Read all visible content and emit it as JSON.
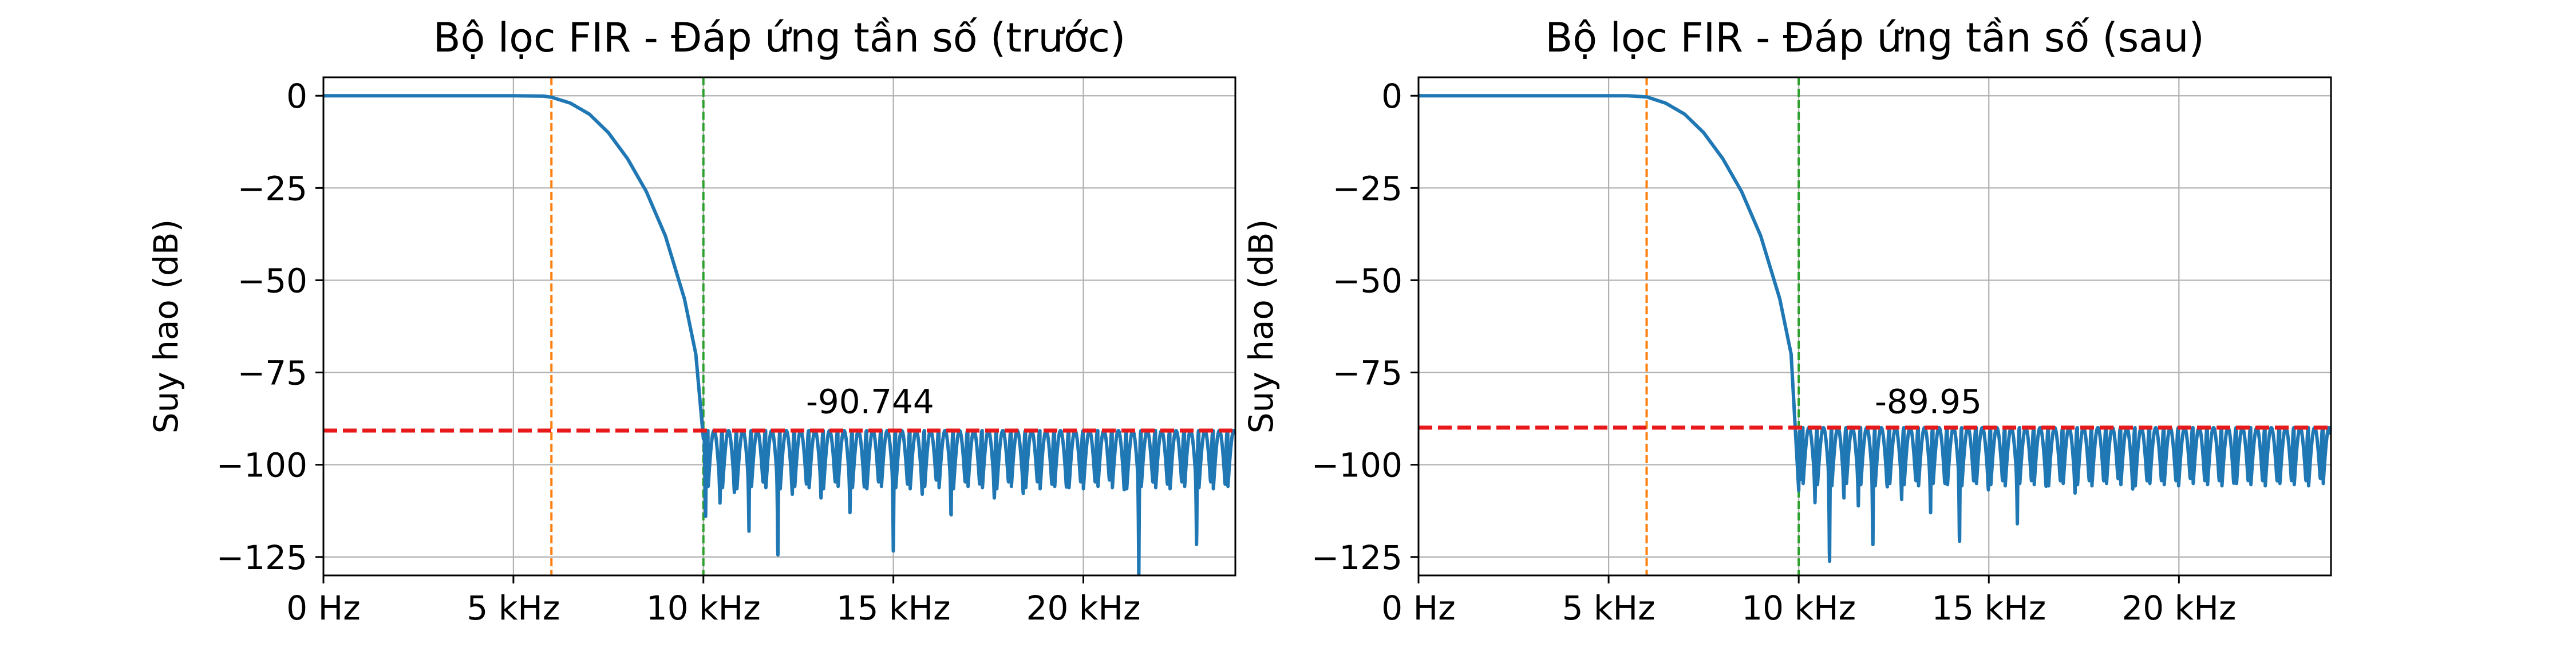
{
  "chart_data": [
    {
      "type": "line",
      "title": "Bộ lọc FIR - Đáp ứng tần số (trước)",
      "xlabel": "",
      "ylabel": "Suy hao (dB)",
      "xlim": [
        0,
        24000
      ],
      "ylim": [
        -130,
        5
      ],
      "x_ticks": [
        0,
        5000,
        10000,
        15000,
        20000
      ],
      "x_tick_labels": [
        "0 Hz",
        "5 kHz",
        "10 kHz",
        "15 kHz",
        "20 kHz"
      ],
      "y_ticks": [
        0,
        -25,
        -50,
        -75,
        -100,
        -125
      ],
      "y_tick_labels": [
        "0",
        "−25",
        "−50",
        "−75",
        "−100",
        "−125"
      ],
      "grid": true,
      "passband_edge_hz": 6000,
      "stopband_edge_hz": 10000,
      "stopband_level_db": -90.744,
      "annotation": {
        "text": "-90.744",
        "x": 12700,
        "y": -86
      },
      "transition_points": [
        [
          0,
          0
        ],
        [
          5000,
          0
        ],
        [
          5800,
          -0.1
        ],
        [
          6000,
          -0.4
        ],
        [
          6500,
          -2
        ],
        [
          7000,
          -5
        ],
        [
          7500,
          -10
        ],
        [
          8000,
          -17
        ],
        [
          8500,
          -26
        ],
        [
          9000,
          -38
        ],
        [
          9500,
          -55
        ],
        [
          9800,
          -70
        ],
        [
          10000,
          -93
        ]
      ],
      "sidelobe_start_hz": 10060,
      "sidelobe_period_hz": 380,
      "sidelobe_peak_db": -90.744,
      "null_depths_db": [
        -114,
        -111,
        -108,
        -118,
        -104,
        -128,
        -108,
        -105,
        -110,
        -104,
        -114,
        -106,
        -104,
        -126,
        -105,
        -108,
        -103,
        -116,
        -104,
        -105,
        -110,
        -104,
        -108,
        -104,
        -105,
        -106,
        -104,
        -104,
        -103,
        -107,
        -131,
        -104,
        -105,
        -104,
        -124,
        -104,
        -105,
        -104
      ],
      "colors": {
        "response": "#1f77b4",
        "passband_line": "#ff7f0e",
        "stopband_line": "#2ca02c",
        "level_line": "#e8191b",
        "grid": "#b0b0b0"
      }
    },
    {
      "type": "line",
      "title": "Bộ lọc FIR - Đáp ứng tần số (sau)",
      "xlabel": "",
      "ylabel": "Suy hao (dB)",
      "xlim": [
        0,
        24000
      ],
      "ylim": [
        -130,
        5
      ],
      "x_ticks": [
        0,
        5000,
        10000,
        15000,
        20000
      ],
      "x_tick_labels": [
        "0 Hz",
        "5 kHz",
        "10 kHz",
        "15 kHz",
        "20 kHz"
      ],
      "y_ticks": [
        0,
        -25,
        -50,
        -75,
        -100,
        -125
      ],
      "y_tick_labels": [
        "0",
        "−25",
        "−50",
        "−75",
        "−100",
        "−125"
      ],
      "grid": true,
      "passband_edge_hz": 6000,
      "stopband_edge_hz": 10000,
      "stopband_level_db": -89.95,
      "annotation": {
        "text": "-89.95",
        "x": 12000,
        "y": -86
      },
      "transition_points": [
        [
          0,
          0
        ],
        [
          5500,
          0
        ],
        [
          6000,
          -0.3
        ],
        [
          6500,
          -2
        ],
        [
          7000,
          -5
        ],
        [
          7500,
          -10
        ],
        [
          8000,
          -17
        ],
        [
          8500,
          -26
        ],
        [
          9000,
          -38
        ],
        [
          9500,
          -55
        ],
        [
          9800,
          -70
        ],
        [
          10000,
          -107
        ]
      ],
      "sidelobe_start_hz": 10050,
      "sidelobe_period_hz": 380,
      "sidelobe_peak_db": -89.95,
      "null_depths_db": [
        -104,
        -111,
        -130,
        -109,
        -112,
        -125,
        -106,
        -110,
        -104,
        -113,
        -105,
        -124,
        -104,
        -107,
        -104,
        -116,
        -104,
        -106,
        -104,
        -108,
        -104,
        -104,
        -103,
        -107,
        -104,
        -104,
        -104,
        -103,
        -104,
        -104,
        -105,
        -104,
        -104,
        -104,
        -104,
        -104,
        -103,
        -104
      ],
      "colors": {
        "response": "#1f77b4",
        "passband_line": "#ff7f0e",
        "stopband_line": "#2ca02c",
        "level_line": "#e8191b",
        "grid": "#b0b0b0"
      }
    }
  ]
}
